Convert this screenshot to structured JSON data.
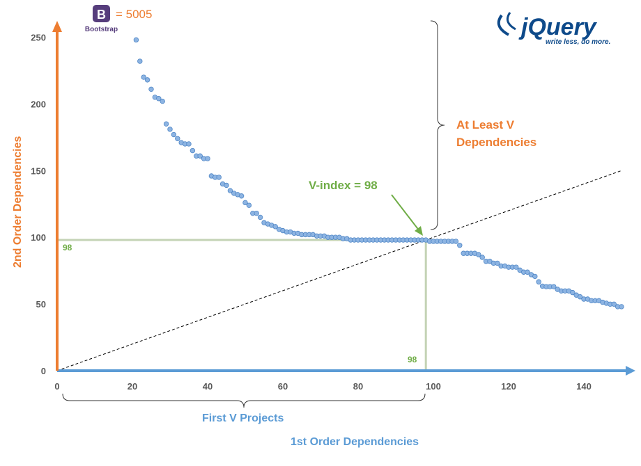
{
  "chart_data": {
    "type": "scatter",
    "xlabel": "1st Order Dependencies",
    "ylabel": "2nd Order Dependencies",
    "xlim": [
      0,
      150
    ],
    "ylim": [
      0,
      260
    ],
    "xticks": [
      0,
      20,
      40,
      60,
      80,
      100,
      120,
      140
    ],
    "yticks": [
      0,
      50,
      100,
      150,
      200,
      250
    ],
    "grid": false,
    "x_start": 21,
    "values": [
      248,
      232,
      220,
      218,
      211,
      205,
      204,
      202,
      185,
      181,
      177,
      174,
      171,
      170,
      170,
      165,
      161,
      161,
      159,
      159,
      146,
      145,
      145,
      140,
      139,
      135,
      133,
      132,
      131,
      126,
      124,
      118,
      118,
      115,
      111,
      110,
      109,
      108,
      106,
      105,
      104,
      104,
      103,
      103,
      102,
      102,
      102,
      102,
      101,
      101,
      101,
      100,
      100,
      100,
      100,
      99,
      99,
      98,
      98,
      98,
      98,
      98,
      98,
      98,
      98,
      98,
      98,
      98,
      98,
      98,
      98,
      98,
      98,
      98,
      98,
      98,
      98,
      98,
      97,
      97,
      97,
      97,
      97,
      97,
      97,
      97,
      94,
      88,
      88,
      88,
      88,
      87,
      85,
      82,
      82,
      80.6,
      80.6,
      78.5,
      78.5,
      77.6,
      77.6,
      77.6,
      75.4,
      73.9,
      73.9,
      72,
      70.7,
      66.6,
      63.4,
      63,
      63,
      63,
      61,
      59.8,
      59.8,
      59.8,
      58.6,
      56.7,
      55.4,
      53.7,
      53.7,
      52.5,
      52.5,
      52.5,
      51.3,
      50.6,
      49.9,
      49.9,
      48,
      48
    ],
    "reference_line": "y = x",
    "v_index": 98,
    "annotations": {
      "v_index_label": "V-index = 98",
      "x_marker": "98",
      "y_marker": "98",
      "brace_vertical": [
        "At Least V",
        "Dependencies"
      ],
      "brace_horizontal": "First V Projects",
      "bootstrap_value": "= 5005"
    },
    "colors": {
      "points": "#8db4e2",
      "point_edge": "#4f86c6",
      "x_axis": "#5b9bd5",
      "y_axis": "#ed7d31",
      "green": "#70ad47",
      "guide": "#c4d3b5"
    }
  },
  "logos": {
    "bootstrap": "Bootstrap",
    "bootstrap_letter": "B",
    "jquery": "jQuery",
    "jquery_tagline": "write less, do more."
  }
}
